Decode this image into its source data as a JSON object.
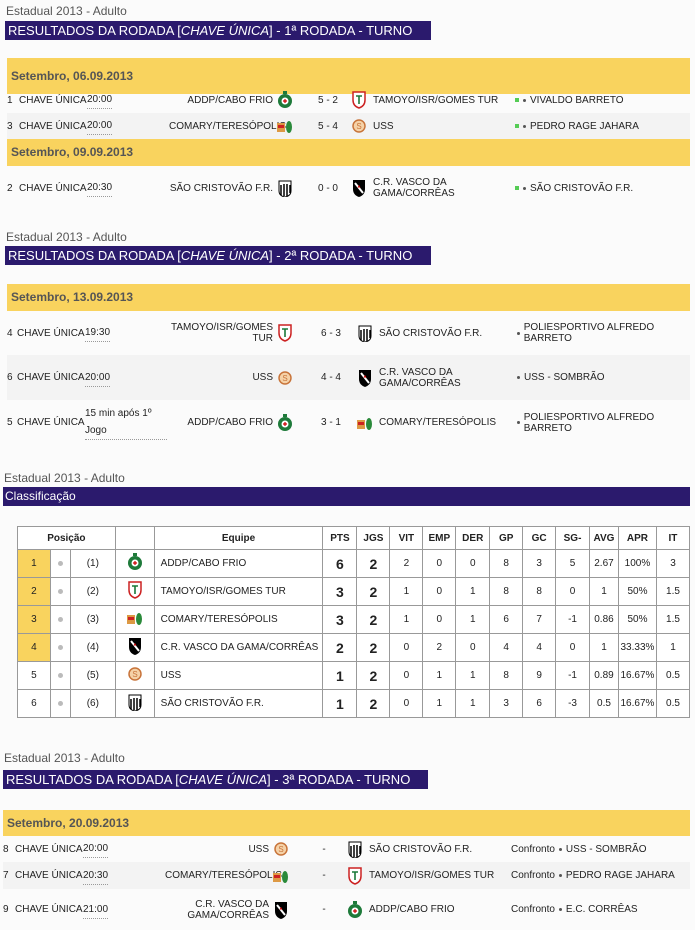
{
  "rounds": [
    {
      "breadcrumb": "Estadual 2013 - Adulto",
      "title_pre": "RESULTADOS DA RODADA [",
      "title_key": "CHAVE ÚNICA",
      "title_post": "] - 1ª RODADA - TURNO",
      "days": [
        {
          "date": "Setembro, 06.09.2013",
          "matches": [
            {
              "num": "1",
              "group": "CHAVE ÚNICA",
              "time": "20:00",
              "home": "ADDP/CABO FRIO",
              "home_crest": "addp",
              "score": "5 - 2",
              "away": "TAMOYO/ISR/GOMES TUR",
              "away_crest": "tamoyo",
              "venue": "VIVALDO BARRETO",
              "status": "green"
            },
            {
              "num": "3",
              "group": "CHAVE ÚNICA",
              "time": "20:00",
              "home": "COMARY/TERESÓPOLIS",
              "home_crest": "comary",
              "score": "5 - 4",
              "away": "USS",
              "away_crest": "uss",
              "venue": "PEDRO RAGE JAHARA",
              "status": "green"
            }
          ]
        },
        {
          "date": "Setembro, 09.09.2013",
          "matches": [
            {
              "num": "2",
              "group": "CHAVE ÚNICA",
              "time": "20:30",
              "home": "SÃO CRISTOVÃO F.R.",
              "home_crest": "saocristovao",
              "score": "0 - 0",
              "away": "C.R. VASCO DA GAMA/CORRÊAS",
              "away_crest": "vasco",
              "venue": "SÃO CRISTOVÃO F.R.",
              "status": "green"
            }
          ]
        }
      ]
    },
    {
      "breadcrumb": "Estadual 2013 - Adulto",
      "title_pre": "RESULTADOS DA RODADA [",
      "title_key": "CHAVE ÚNICA",
      "title_post": "] - 2ª RODADA - TURNO",
      "days": [
        {
          "date": "Setembro, 13.09.2013",
          "matches": [
            {
              "num": "4",
              "group": "CHAVE ÚNICA",
              "time": "19:30",
              "home": "TAMOYO/ISR/GOMES TUR",
              "home_crest": "tamoyo",
              "score": "6 - 3",
              "away": "SÃO CRISTOVÃO F.R.",
              "away_crest": "saocristovao",
              "venue": "POLIESPORTIVO ALFREDO BARRETO"
            },
            {
              "num": "6",
              "group": "CHAVE ÚNICA",
              "time": "20:00",
              "home": "USS",
              "home_crest": "uss",
              "score": "4 - 4",
              "away": "C.R. VASCO DA GAMA/CORRÊAS",
              "away_crest": "vasco",
              "venue": "USS - SOMBRÃO"
            },
            {
              "num": "5",
              "group": "CHAVE ÚNICA",
              "time": "15 min após 1º Jogo",
              "home": "ADDP/CABO FRIO",
              "home_crest": "addp",
              "score": "3 - 1",
              "away": "COMARY/TERESÓPOLIS",
              "away_crest": "comary",
              "venue": "POLIESPORTIVO ALFREDO BARRETO"
            }
          ]
        }
      ]
    },
    {
      "breadcrumb": "Estadual 2013 - Adulto",
      "title_pre": "RESULTADOS DA RODADA [",
      "title_key": "CHAVE ÚNICA",
      "title_post": "] - 3ª RODADA - TURNO",
      "days": [
        {
          "date": "Setembro, 20.09.2013",
          "matches": [
            {
              "num": "8",
              "group": "CHAVE ÚNICA",
              "time": "20:00",
              "home": "USS",
              "home_crest": "uss",
              "score": "-",
              "away": "SÃO CRISTOVÃO F.R.",
              "away_crest": "saocristovao",
              "label": "Confronto",
              "venue": "USS - SOMBRÃO"
            },
            {
              "num": "7",
              "group": "CHAVE ÚNICA",
              "time": "20:30",
              "home": "COMARY/TERESÓPOLIS",
              "home_crest": "comary",
              "score": "-",
              "away": "TAMOYO/ISR/GOMES TUR",
              "away_crest": "tamoyo",
              "label": "Confronto",
              "venue": "PEDRO RAGE JAHARA"
            },
            {
              "num": "9",
              "group": "CHAVE ÚNICA",
              "time": "21:00",
              "home": "C.R. VASCO DA GAMA/CORRÊAS",
              "home_crest": "vasco",
              "score": "-",
              "away": "ADDP/CABO FRIO",
              "away_crest": "addp",
              "label": "Confronto",
              "venue": "E.C. CORRÊAS"
            }
          ]
        }
      ]
    }
  ],
  "standings": {
    "breadcrumb": "Estadual 2013 - Adulto",
    "title": "Classificação",
    "headers": [
      "Posição",
      "Equipe",
      "PTS",
      "JGS",
      "VIT",
      "EMP",
      "DER",
      "GP",
      "GC",
      "SG-",
      "AVG",
      "APR",
      "IT"
    ],
    "rows": [
      {
        "pos": "1",
        "prev": "(1)",
        "crest": "addp",
        "team": "ADDP/CABO FRIO",
        "v": [
          "6",
          "2",
          "2",
          "0",
          "0",
          "8",
          "3",
          "5",
          "2.67",
          "100%",
          "3"
        ],
        "highlight": true
      },
      {
        "pos": "2",
        "prev": "(2)",
        "crest": "tamoyo",
        "team": "TAMOYO/ISR/GOMES TUR",
        "v": [
          "3",
          "2",
          "1",
          "0",
          "1",
          "8",
          "8",
          "0",
          "1",
          "50%",
          "1.5"
        ],
        "highlight": true
      },
      {
        "pos": "3",
        "prev": "(3)",
        "crest": "comary",
        "team": "COMARY/TERESÓPOLIS",
        "v": [
          "3",
          "2",
          "1",
          "0",
          "1",
          "6",
          "7",
          "-1",
          "0.86",
          "50%",
          "1.5"
        ],
        "highlight": true
      },
      {
        "pos": "4",
        "prev": "(4)",
        "crest": "vasco",
        "team": "C.R. VASCO DA GAMA/CORRÊAS",
        "v": [
          "2",
          "2",
          "0",
          "2",
          "0",
          "4",
          "4",
          "0",
          "1",
          "33.33%",
          "1"
        ],
        "highlight": true
      },
      {
        "pos": "5",
        "prev": "(5)",
        "crest": "uss",
        "team": "USS",
        "v": [
          "1",
          "2",
          "0",
          "1",
          "1",
          "8",
          "9",
          "-1",
          "0.89",
          "16.67%",
          "0.5"
        ],
        "highlight": false
      },
      {
        "pos": "6",
        "prev": "(6)",
        "crest": "saocristovao",
        "team": "SÃO CRISTOVÃO F.R.",
        "v": [
          "1",
          "2",
          "0",
          "1",
          "1",
          "3",
          "6",
          "-3",
          "0.5",
          "16.67%",
          "0.5"
        ],
        "highlight": false
      }
    ]
  },
  "colors": {
    "title_bg": "#2b1a6d",
    "date_bar": "#f9d35e",
    "status_green": "#55cc55"
  }
}
